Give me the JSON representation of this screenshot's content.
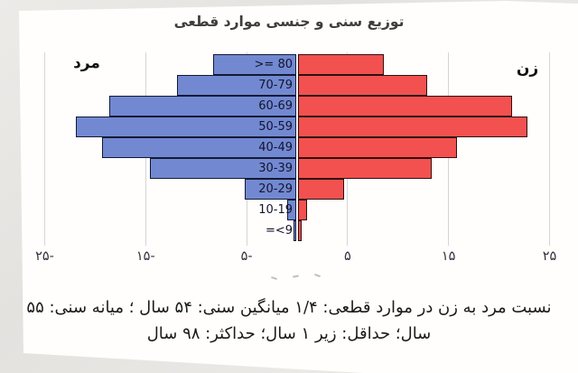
{
  "title": "توزیع سنی و جنسی موارد قطعی",
  "labels": {
    "male": "مرد",
    "female": "زن"
  },
  "caption": {
    "line1": "نسبت مرد به زن در موارد قطعی: ۱/۴  میانگین سنی: ۵۴ سال ؛ میانه سنی: ۵۵",
    "line2": "سال؛ حداقل: زیر ۱ سال؛ حداکثر: ۹۸ سال"
  },
  "colors": {
    "male_fill": "#7289d2",
    "female_fill": "#f25150",
    "male_border": "#141a33",
    "female_border": "#301010",
    "gridline": "#d5d5d5"
  },
  "chart_data": {
    "type": "bar",
    "subtype": "population-pyramid",
    "orientation": "horizontal",
    "title": "توزیع سنی و جنسی موارد قطعی",
    "categories": [
      ">= 80",
      "70-79",
      "60-69",
      "50-59",
      "40-49",
      "30-39",
      "20-29",
      "10-19",
      "=<9"
    ],
    "series": [
      {
        "name": "مرد",
        "side": "left",
        "color": "#7289d2",
        "values": [
          8.2,
          11.8,
          18.5,
          21.8,
          19.2,
          14.5,
          5.1,
          0.9,
          0.3
        ]
      },
      {
        "name": "زن",
        "side": "right",
        "color": "#f25150",
        "values": [
          8.5,
          12.8,
          21.2,
          22.7,
          15.7,
          13.2,
          4.6,
          0.9,
          0.4
        ]
      }
    ],
    "xlim": [
      -25,
      25
    ],
    "x_tick_values": [
      -25,
      -15,
      -5,
      5,
      15,
      25
    ],
    "x_tick_labels": [
      "۲۵-",
      "۱۵-",
      "۵-",
      "۵",
      "۱۵",
      "۲۵"
    ],
    "grid": true,
    "legend_position": "none",
    "stats_caption": "نسبت مرد به زن در موارد قطعی: ۱/۴  میانگین سنی: ۵۴ سال ؛ میانه سنی: ۵۵ سال؛ حداقل: زیر ۱ سال؛ حداکثر: ۹۸ سال"
  }
}
